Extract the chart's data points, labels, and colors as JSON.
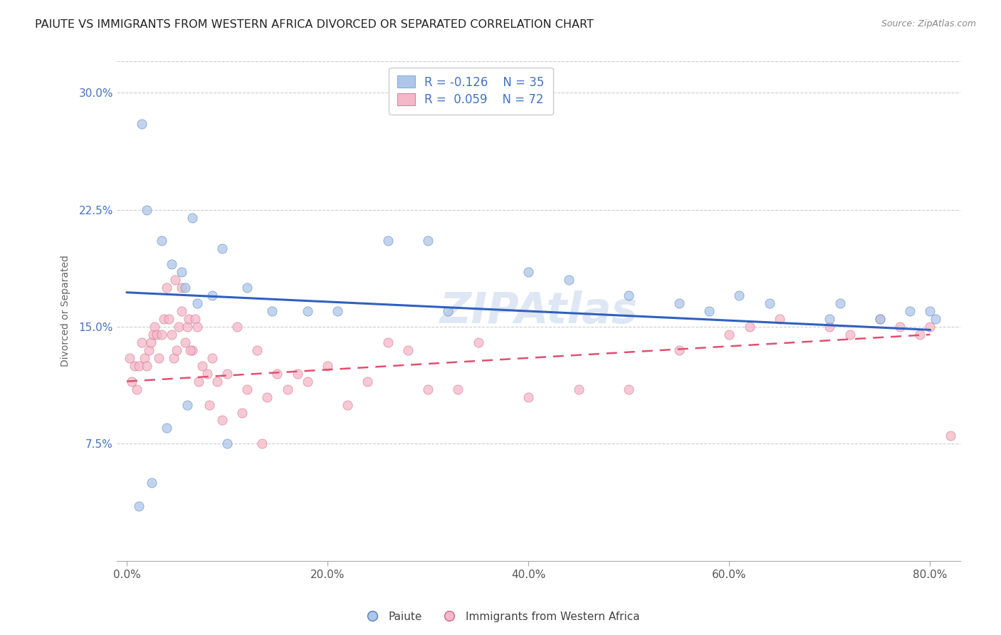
{
  "title": "PAIUTE VS IMMIGRANTS FROM WESTERN AFRICA DIVORCED OR SEPARATED CORRELATION CHART",
  "source": "Source: ZipAtlas.com",
  "xlabel_ticks": [
    "0.0%",
    "20.0%",
    "40.0%",
    "60.0%",
    "80.0%"
  ],
  "xlabel_vals": [
    0.0,
    20.0,
    40.0,
    60.0,
    80.0
  ],
  "ylabel_ticks": [
    "7.5%",
    "15.0%",
    "22.5%",
    "30.0%"
  ],
  "ylabel_vals": [
    7.5,
    15.0,
    22.5,
    30.0
  ],
  "xlim": [
    -1,
    83
  ],
  "ylim": [
    0,
    32
  ],
  "legend_label1": "Paiute",
  "legend_label2": "Immigrants from Western Africa",
  "color_blue": "#aec6e8",
  "color_pink": "#f4b8c8",
  "line_blue": "#3060c0",
  "line_pink": "#e05070",
  "watermark": "ZIPAtlas",
  "paiute_x": [
    1.5,
    2.0,
    3.5,
    4.5,
    5.5,
    5.8,
    6.5,
    7.0,
    8.5,
    9.5,
    12.0,
    14.5,
    18.0,
    21.0,
    26.0,
    30.0,
    32.0,
    40.0,
    44.0,
    50.0,
    55.0,
    58.0,
    61.0,
    64.0,
    70.0,
    71.0,
    75.0,
    78.0,
    80.0,
    80.5,
    1.2,
    2.5,
    4.0,
    6.0,
    10.0
  ],
  "paiute_y": [
    28.0,
    22.5,
    20.5,
    19.0,
    18.5,
    17.5,
    22.0,
    16.5,
    17.0,
    20.0,
    17.5,
    16.0,
    16.0,
    16.0,
    20.5,
    20.5,
    16.0,
    18.5,
    18.0,
    17.0,
    16.5,
    16.0,
    17.0,
    16.5,
    15.5,
    16.5,
    15.5,
    16.0,
    16.0,
    15.5,
    3.5,
    5.0,
    8.5,
    10.0,
    7.5
  ],
  "immig_x": [
    0.3,
    0.5,
    0.8,
    1.0,
    1.2,
    1.5,
    1.8,
    2.0,
    2.2,
    2.4,
    2.6,
    2.8,
    3.0,
    3.2,
    3.5,
    3.7,
    4.0,
    4.2,
    4.5,
    4.7,
    5.0,
    5.2,
    5.5,
    5.8,
    6.0,
    6.2,
    6.5,
    6.8,
    7.0,
    7.5,
    8.0,
    8.5,
    9.0,
    10.0,
    11.0,
    12.0,
    13.0,
    14.0,
    15.0,
    16.0,
    17.0,
    18.0,
    20.0,
    22.0,
    24.0,
    26.0,
    28.0,
    30.0,
    33.0,
    35.0,
    40.0,
    45.0,
    50.0,
    55.0,
    60.0,
    62.0,
    65.0,
    70.0,
    72.0,
    75.0,
    77.0,
    79.0,
    80.0,
    82.0,
    5.5,
    4.8,
    6.3,
    7.2,
    8.2,
    9.5,
    11.5,
    13.5
  ],
  "immig_y": [
    13.0,
    11.5,
    12.5,
    11.0,
    12.5,
    14.0,
    13.0,
    12.5,
    13.5,
    14.0,
    14.5,
    15.0,
    14.5,
    13.0,
    14.5,
    15.5,
    17.5,
    15.5,
    14.5,
    13.0,
    13.5,
    15.0,
    16.0,
    14.0,
    15.0,
    15.5,
    13.5,
    15.5,
    15.0,
    12.5,
    12.0,
    13.0,
    11.5,
    12.0,
    15.0,
    11.0,
    13.5,
    10.5,
    12.0,
    11.0,
    12.0,
    11.5,
    12.5,
    10.0,
    11.5,
    14.0,
    13.5,
    11.0,
    11.0,
    14.0,
    10.5,
    11.0,
    11.0,
    13.5,
    14.5,
    15.0,
    15.5,
    15.0,
    14.5,
    15.5,
    15.0,
    14.5,
    15.0,
    8.0,
    17.5,
    18.0,
    13.5,
    11.5,
    10.0,
    9.0,
    9.5,
    7.5
  ],
  "blue_line_x0": 0,
  "blue_line_y0": 17.2,
  "blue_line_x1": 80,
  "blue_line_y1": 14.8,
  "pink_line_x0": 0,
  "pink_line_y0": 11.5,
  "pink_line_x1": 80,
  "pink_line_y1": 14.5
}
